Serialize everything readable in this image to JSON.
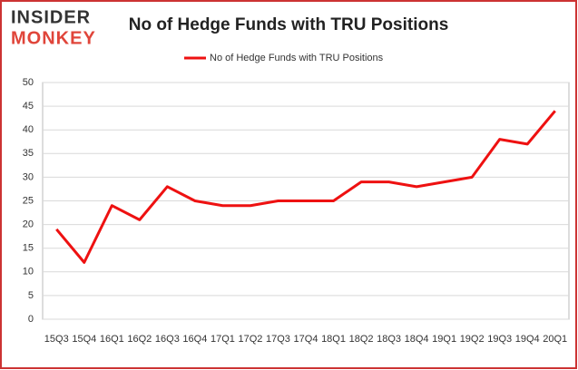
{
  "logo": {
    "line1": "INSIDER",
    "line2": "MONKEY"
  },
  "chart_data": {
    "type": "line",
    "title": "No of Hedge Funds with TRU Positions",
    "categories": [
      "15Q3",
      "15Q4",
      "16Q1",
      "16Q2",
      "16Q3",
      "16Q4",
      "17Q1",
      "17Q2",
      "17Q3",
      "17Q4",
      "18Q1",
      "18Q2",
      "18Q3",
      "18Q4",
      "19Q1",
      "19Q2",
      "19Q3",
      "19Q4",
      "20Q1"
    ],
    "series": [
      {
        "name": "No of Hedge Funds with TRU Positions",
        "color": "#ee1111",
        "values": [
          19,
          12,
          24,
          21,
          28,
          25,
          24,
          24,
          25,
          25,
          25,
          29,
          29,
          28,
          29,
          30,
          38,
          37,
          44
        ]
      }
    ],
    "ylim": [
      0,
      50
    ],
    "yticks": [
      0,
      5,
      10,
      15,
      20,
      25,
      30,
      35,
      40,
      45,
      50
    ],
    "grid": true,
    "legend": "top"
  }
}
